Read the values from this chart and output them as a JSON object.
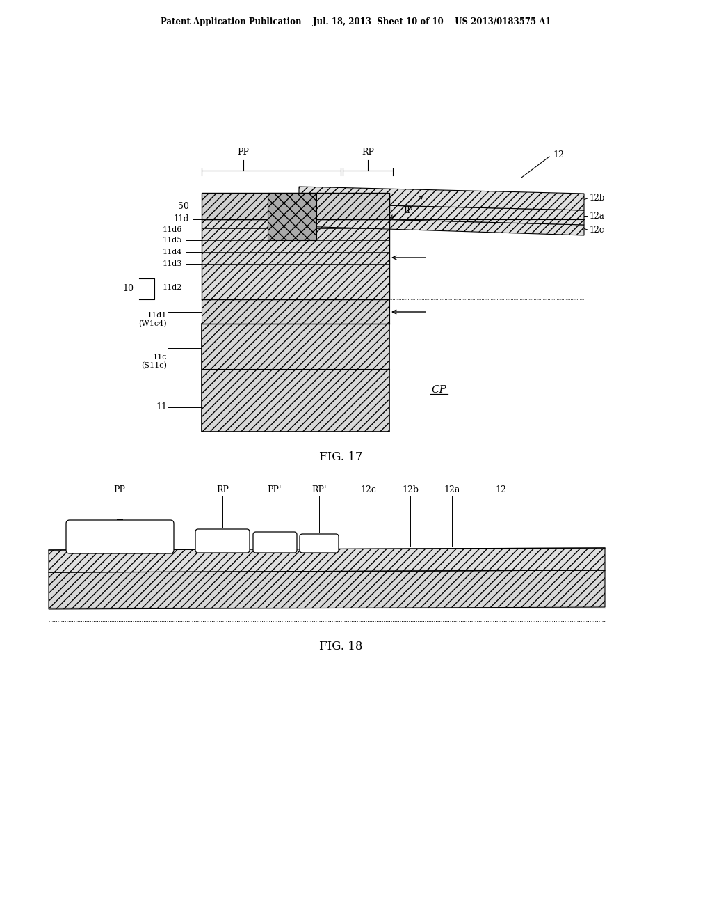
{
  "bg_color": "#ffffff",
  "header_text": "Patent Application Publication    Jul. 18, 2013  Sheet 10 of 10    US 2013/0183575 A1",
  "fig17_caption": "FIG. 17",
  "fig18_caption": "FIG. 18"
}
